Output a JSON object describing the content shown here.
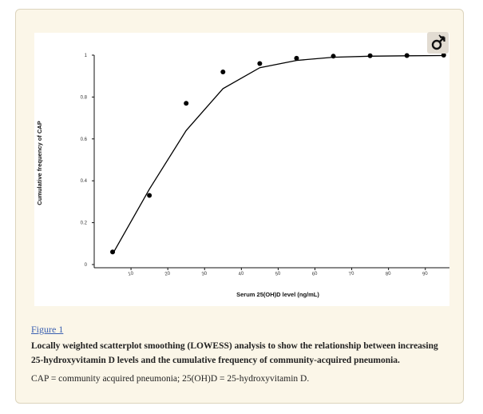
{
  "figure": {
    "link_text": "Figure 1",
    "caption_title": "Locally weighted scatterplot smoothing (LOWESS) analysis to show the relationship between increasing 25-hydroxyvitamin D levels and the cumulative frequency of community-acquired pneumonia.",
    "caption_note": "CAP = community acquired pneumonia; 25(OH)D = 25-hydroxyvitamin D.",
    "badge_icon": "gender-symbol-icon"
  },
  "chart_data": {
    "type": "scatter",
    "title": "",
    "xlabel": "Serum 25(OH)D level (ng/mL)",
    "ylabel": "Cumulative frequency of CAP",
    "xlim": [
      0,
      97
    ],
    "ylim": [
      0,
      1
    ],
    "xticks": [
      10,
      20,
      30,
      40,
      50,
      60,
      70,
      80,
      90
    ],
    "xtick_labels": [
      "10",
      "20",
      "30",
      "40",
      "50",
      "60",
      "70",
      "80",
      "90"
    ],
    "yticks": [
      0,
      0.2,
      0.4,
      0.6,
      0.8,
      1
    ],
    "ytick_labels": [
      "0",
      "0.2",
      "0.4",
      "0.6",
      "0.8",
      "1"
    ],
    "grid": false,
    "legend": "none",
    "series": [
      {
        "kind": "points",
        "x": [
          5,
          15,
          25,
          35,
          45,
          55,
          65,
          75,
          85,
          95
        ],
        "y": [
          0.06,
          0.33,
          0.77,
          0.92,
          0.96,
          0.985,
          0.995,
          0.997,
          0.998,
          1.0
        ],
        "color": "#000000"
      },
      {
        "kind": "lowess-line",
        "x": [
          5,
          15,
          25,
          35,
          45,
          55,
          65,
          75,
          85,
          95
        ],
        "y": [
          0.05,
          0.36,
          0.64,
          0.84,
          0.94,
          0.975,
          0.99,
          0.995,
          0.997,
          0.998
        ],
        "color": "#000000"
      }
    ]
  }
}
